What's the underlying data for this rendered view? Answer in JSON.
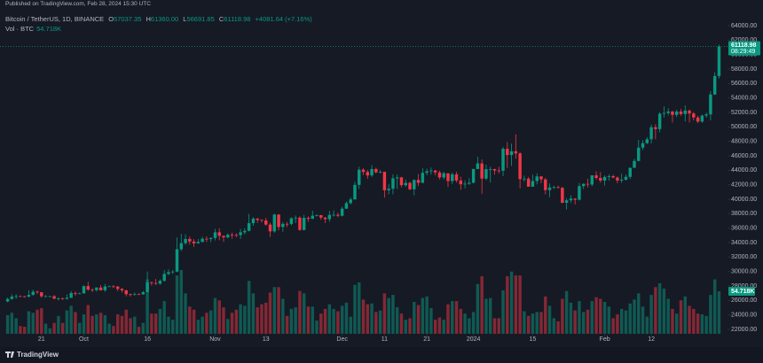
{
  "header": {
    "published": "Published on TradingView.com, Feb 28, 2024 15:30 UTC",
    "symbol": "Bitcoin / TetherUS, 1D, BINANCE",
    "ohlc": [
      {
        "key": "O",
        "value": "57037.35"
      },
      {
        "key": "H",
        "value": "61360.00"
      },
      {
        "key": "L",
        "value": "56691.85"
      },
      {
        "key": "C",
        "value": "61118.98"
      }
    ],
    "change": "+4081.64 (+7.16%)",
    "volume_label": "Vol · BTC",
    "volume_value": "54.718K"
  },
  "footer": {
    "brand": "TradingView"
  },
  "chart_data": {
    "type": "candlestick",
    "up_color": "#089981",
    "down_color": "#f23645",
    "candles": [
      [
        25850,
        26400,
        25770,
        26200
      ],
      [
        26200,
        26860,
        26130,
        26530
      ],
      [
        26530,
        26850,
        26230,
        26600
      ],
      [
        26600,
        26680,
        26480,
        26570
      ],
      [
        26570,
        26620,
        26410,
        26530
      ],
      [
        26530,
        27410,
        26390,
        26760
      ],
      [
        26760,
        27490,
        26680,
        27210
      ],
      [
        27210,
        27380,
        26880,
        27130
      ],
      [
        27130,
        27160,
        26360,
        26570
      ],
      [
        26570,
        26740,
        26490,
        26580
      ],
      [
        26580,
        26640,
        26520,
        26580
      ],
      [
        26580,
        26740,
        26130,
        26250
      ],
      [
        26250,
        26430,
        25990,
        26300
      ],
      [
        26300,
        26390,
        26090,
        26220
      ],
      [
        26220,
        26840,
        26110,
        26370
      ],
      [
        26370,
        27310,
        26330,
        27020
      ],
      [
        27020,
        27230,
        26670,
        26910
      ],
      [
        26910,
        27090,
        26890,
        26970
      ],
      [
        26970,
        28070,
        26960,
        27980
      ],
      [
        27980,
        28580,
        27330,
        27500
      ],
      [
        27500,
        27670,
        27170,
        27430
      ],
      [
        27430,
        27830,
        27220,
        27780
      ],
      [
        27780,
        28120,
        27360,
        27410
      ],
      [
        27410,
        28290,
        27180,
        27930
      ],
      [
        27930,
        28050,
        27880,
        27950
      ],
      [
        27950,
        28120,
        27710,
        27920
      ],
      [
        27920,
        27990,
        27300,
        27590
      ],
      [
        27590,
        27730,
        27110,
        27390
      ],
      [
        27390,
        27480,
        26560,
        26870
      ],
      [
        26870,
        26950,
        26550,
        26760
      ],
      [
        26760,
        27100,
        26690,
        26860
      ],
      [
        26860,
        26990,
        26800,
        26850
      ],
      [
        26850,
        27300,
        26780,
        27150
      ],
      [
        27150,
        30000,
        27110,
        28500
      ],
      [
        28500,
        28610,
        28080,
        28400
      ],
      [
        28400,
        28990,
        28150,
        28320
      ],
      [
        28320,
        28920,
        28170,
        28720
      ],
      [
        28720,
        30200,
        28600,
        29670
      ],
      [
        29670,
        30300,
        29480,
        29910
      ],
      [
        29910,
        30200,
        29660,
        29990
      ],
      [
        29990,
        34700,
        29900,
        33080
      ],
      [
        33080,
        35200,
        32830,
        33920
      ],
      [
        33920,
        35130,
        33700,
        34500
      ],
      [
        34500,
        34830,
        33720,
        34150
      ],
      [
        34150,
        34480,
        33390,
        33890
      ],
      [
        33890,
        34480,
        33880,
        34090
      ],
      [
        34090,
        34800,
        34050,
        34530
      ],
      [
        34530,
        34860,
        34080,
        34490
      ],
      [
        34490,
        34720,
        34060,
        34640
      ],
      [
        34640,
        35900,
        34300,
        35420
      ],
      [
        35420,
        35980,
        34330,
        34940
      ],
      [
        34940,
        34950,
        34100,
        34720
      ],
      [
        34720,
        35280,
        34580,
        35080
      ],
      [
        35080,
        35380,
        34530,
        35050
      ],
      [
        35050,
        35290,
        34750,
        35040
      ],
      [
        35040,
        35890,
        34500,
        35420
      ],
      [
        35420,
        35980,
        35110,
        35620
      ],
      [
        35620,
        37970,
        35550,
        36690
      ],
      [
        36690,
        37530,
        36330,
        37320
      ],
      [
        37320,
        37400,
        36730,
        37130
      ],
      [
        37130,
        37210,
        36770,
        37060
      ],
      [
        37060,
        37420,
        36330,
        36490
      ],
      [
        36490,
        36750,
        34800,
        35550
      ],
      [
        35550,
        37980,
        35360,
        37880
      ],
      [
        37880,
        37930,
        35680,
        36160
      ],
      [
        36160,
        36850,
        35500,
        36590
      ],
      [
        36590,
        36840,
        36150,
        36570
      ],
      [
        36570,
        37500,
        36380,
        37360
      ],
      [
        37360,
        37750,
        36700,
        37450
      ],
      [
        37450,
        37650,
        35630,
        35750
      ],
      [
        35750,
        37860,
        35670,
        37420
      ],
      [
        37420,
        37650,
        36870,
        37290
      ],
      [
        37290,
        38420,
        37250,
        37720
      ],
      [
        37720,
        37900,
        37600,
        37800
      ],
      [
        37800,
        37820,
        37150,
        37450
      ],
      [
        37450,
        37570,
        36700,
        37240
      ],
      [
        37240,
        38380,
        36880,
        37820
      ],
      [
        37820,
        38450,
        37600,
        37850
      ],
      [
        37850,
        38150,
        37500,
        37710
      ],
      [
        37710,
        38950,
        37620,
        38690
      ],
      [
        38690,
        39700,
        38650,
        39460
      ],
      [
        39460,
        40250,
        39280,
        39970
      ],
      [
        39970,
        42420,
        39970,
        41980
      ],
      [
        41980,
        44490,
        41420,
        44080
      ],
      [
        44080,
        44300,
        43340,
        43770
      ],
      [
        43770,
        44050,
        42820,
        43290
      ],
      [
        43290,
        44700,
        43080,
        44170
      ],
      [
        44170,
        44360,
        43580,
        43720
      ],
      [
        43720,
        44040,
        43570,
        43790
      ],
      [
        43790,
        43810,
        40220,
        41240
      ],
      [
        41240,
        42100,
        40680,
        41450
      ],
      [
        41450,
        43430,
        40680,
        42890
      ],
      [
        42890,
        43420,
        41420,
        43020
      ],
      [
        43020,
        43090,
        41660,
        41940
      ],
      [
        41940,
        42710,
        41700,
        42260
      ],
      [
        42260,
        42430,
        41250,
        41370
      ],
      [
        41370,
        42760,
        40530,
        42660
      ],
      [
        42660,
        43490,
        41800,
        42270
      ],
      [
        42270,
        44280,
        42200,
        43650
      ],
      [
        43650,
        44240,
        43300,
        43860
      ],
      [
        43860,
        44400,
        43400,
        43970
      ],
      [
        43970,
        44020,
        43300,
        43700
      ],
      [
        43700,
        43950,
        42740,
        43010
      ],
      [
        43010,
        43800,
        42720,
        43580
      ],
      [
        43580,
        43600,
        41680,
        42510
      ],
      [
        42510,
        43680,
        42100,
        43440
      ],
      [
        43440,
        43800,
        42300,
        42580
      ],
      [
        42580,
        43120,
        41300,
        42070
      ],
      [
        42070,
        42600,
        41520,
        42140
      ],
      [
        42140,
        42890,
        41990,
        42280
      ],
      [
        42280,
        44200,
        42180,
        44180
      ],
      [
        44180,
        45880,
        44150,
        44950
      ],
      [
        44950,
        45500,
        40750,
        42850
      ],
      [
        42850,
        44770,
        42630,
        44150
      ],
      [
        44150,
        44500,
        42300,
        44160
      ],
      [
        44160,
        44230,
        43400,
        43970
      ],
      [
        43970,
        44490,
        43580,
        43930
      ],
      [
        43930,
        47250,
        43180,
        46970
      ],
      [
        46970,
        47900,
        44300,
        46110
      ],
      [
        46110,
        47700,
        44600,
        46630
      ],
      [
        46630,
        48970,
        45600,
        46340
      ],
      [
        46340,
        46500,
        41500,
        42780
      ],
      [
        42780,
        43260,
        42440,
        42840
      ],
      [
        42840,
        43080,
        41720,
        41730
      ],
      [
        41730,
        43400,
        41720,
        42510
      ],
      [
        42510,
        43580,
        42050,
        43150
      ],
      [
        43150,
        43200,
        42200,
        42740
      ],
      [
        42740,
        42930,
        40680,
        41260
      ],
      [
        41260,
        42190,
        40280,
        41620
      ],
      [
        41620,
        41870,
        41430,
        41660
      ],
      [
        41660,
        41880,
        41500,
        41580
      ],
      [
        41580,
        41690,
        39430,
        39510
      ],
      [
        39510,
        40130,
        38560,
        39850
      ],
      [
        39850,
        40550,
        39490,
        40080
      ],
      [
        40080,
        40130,
        39260,
        39930
      ],
      [
        39930,
        42230,
        39820,
        41810
      ],
      [
        41810,
        42200,
        41390,
        42120
      ],
      [
        42120,
        42840,
        41620,
        42030
      ],
      [
        42030,
        43300,
        41800,
        43300
      ],
      [
        43300,
        43840,
        42690,
        42940
      ],
      [
        42940,
        43750,
        42280,
        42580
      ],
      [
        42580,
        43290,
        41880,
        43080
      ],
      [
        43080,
        43420,
        42560,
        43190
      ],
      [
        43190,
        43380,
        42880,
        43000
      ],
      [
        43000,
        43120,
        42220,
        42580
      ],
      [
        42580,
        43530,
        42260,
        42700
      ],
      [
        42700,
        43400,
        42570,
        43090
      ],
      [
        43090,
        44380,
        42780,
        44340
      ],
      [
        44340,
        45600,
        44330,
        45290
      ],
      [
        45290,
        48200,
        45240,
        47130
      ],
      [
        47130,
        48170,
        46800,
        47750
      ],
      [
        47750,
        48580,
        47630,
        48290
      ],
      [
        48290,
        50330,
        47710,
        49960
      ],
      [
        49960,
        50370,
        48300,
        49700
      ],
      [
        49700,
        52040,
        49260,
        51820
      ],
      [
        51820,
        52820,
        51300,
        51920
      ],
      [
        51920,
        52580,
        51580,
        52130
      ],
      [
        52130,
        52200,
        50620,
        51660
      ],
      [
        51660,
        52380,
        51350,
        52120
      ],
      [
        52120,
        52500,
        51530,
        51780
      ],
      [
        51780,
        52980,
        50760,
        52260
      ],
      [
        52260,
        52380,
        50620,
        51850
      ],
      [
        51850,
        52080,
        50900,
        51300
      ],
      [
        51300,
        51550,
        50530,
        50730
      ],
      [
        50730,
        51700,
        50580,
        51570
      ],
      [
        51570,
        51960,
        51280,
        51730
      ],
      [
        51730,
        54940,
        50900,
        54480
      ],
      [
        54480,
        57570,
        54420,
        57040
      ],
      [
        57037.35,
        61360,
        56691.85,
        61118.98
      ]
    ],
    "volumes": [
      24,
      27,
      20,
      10,
      9,
      29,
      27,
      31,
      33,
      13,
      7,
      14,
      23,
      14,
      30,
      36,
      28,
      14,
      25,
      37,
      23,
      25,
      27,
      24,
      13,
      10,
      25,
      23,
      31,
      20,
      22,
      9,
      14,
      70,
      26,
      26,
      32,
      42,
      22,
      18,
      75,
      82,
      52,
      35,
      31,
      18,
      22,
      27,
      30,
      46,
      43,
      34,
      19,
      27,
      31,
      38,
      36,
      68,
      52,
      34,
      38,
      40,
      53,
      60,
      60,
      45,
      23,
      32,
      34,
      55,
      52,
      35,
      35,
      17,
      26,
      32,
      38,
      32,
      29,
      36,
      40,
      22,
      63,
      66,
      44,
      38,
      39,
      28,
      30,
      52,
      46,
      50,
      34,
      26,
      18,
      20,
      41,
      37,
      46,
      48,
      33,
      18,
      21,
      18,
      38,
      42,
      42,
      32,
      26,
      20,
      28,
      64,
      74,
      45,
      46,
      20,
      20,
      56,
      74,
      80,
      75,
      75,
      29,
      23,
      26,
      28,
      28,
      48,
      36,
      20,
      16,
      45,
      55,
      40,
      30,
      42,
      28,
      31,
      42,
      47,
      45,
      41,
      35,
      20,
      25,
      32,
      30,
      39,
      44,
      52,
      35,
      22,
      50,
      60,
      65,
      58,
      45,
      32,
      26,
      43,
      48,
      36,
      32,
      26,
      25,
      23,
      50,
      70,
      54.718
    ],
    "xlim": [
      -1.8,
      170
    ],
    "xticks": [
      {
        "value": 8,
        "label": "21"
      },
      {
        "value": 18,
        "label": "Oct"
      },
      {
        "value": 33,
        "label": "16"
      },
      {
        "value": 49,
        "label": "Nov"
      },
      {
        "value": 61,
        "label": "13"
      },
      {
        "value": 79,
        "label": "Dec"
      },
      {
        "value": 89,
        "label": "11"
      },
      {
        "value": 99,
        "label": "21"
      },
      {
        "value": 110,
        "label": "2024"
      },
      {
        "value": 124,
        "label": "15"
      },
      {
        "value": 141,
        "label": "Feb"
      },
      {
        "value": 152,
        "label": "12"
      }
    ],
    "ylim": [
      21388,
      66571
    ],
    "yticks": [
      {
        "value": 22000,
        "label": "22000.00"
      },
      {
        "value": 24000,
        "label": "24000.00"
      },
      {
        "value": 26000,
        "label": "26000.00"
      },
      {
        "value": 28000,
        "label": "28000.00"
      },
      {
        "value": 30000,
        "label": "30000.00"
      },
      {
        "value": 32000,
        "label": "32000.00"
      },
      {
        "value": 34000,
        "label": "34000.00"
      },
      {
        "value": 36000,
        "label": "36000.00"
      },
      {
        "value": 38000,
        "label": "38000.00"
      },
      {
        "value": 40000,
        "label": "40000.00"
      },
      {
        "value": 42000,
        "label": "42000.00"
      },
      {
        "value": 44000,
        "label": "44000.00"
      },
      {
        "value": 46000,
        "label": "46000.00"
      },
      {
        "value": 48000,
        "label": "48000.00"
      },
      {
        "value": 50000,
        "label": "50000.00"
      },
      {
        "value": 52000,
        "label": "52000.00"
      },
      {
        "value": 54000,
        "label": "54000.00"
      },
      {
        "value": 56000,
        "label": "56000.00"
      },
      {
        "value": 58000,
        "label": "58000.00"
      },
      {
        "value": 60000,
        "label": "60000.00"
      },
      {
        "value": 62000,
        "label": "62000.00"
      },
      {
        "value": 64000,
        "label": "64000.00"
      }
    ],
    "price_tag": {
      "value": "61118.98",
      "countdown": "08:29:49"
    },
    "volume_tag": "54.718K"
  }
}
